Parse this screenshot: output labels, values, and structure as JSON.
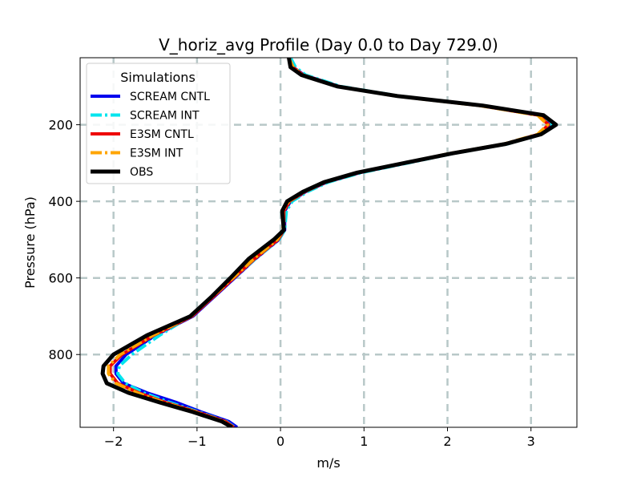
{
  "chart_data": {
    "type": "line",
    "title": "V_horiz_avg Profile (Day 0.0 to Day 729.0)",
    "xlabel": "m/s",
    "ylabel": "Pressure (hPa)",
    "xlim": [
      -2.4,
      3.55
    ],
    "ylim": [
      990,
      25
    ],
    "y_inverted": true,
    "grid": true,
    "x_ticks": [
      -2,
      -1,
      0,
      1,
      2,
      3
    ],
    "x_tick_labels": [
      "−2",
      "−1",
      "0",
      "1",
      "2",
      "3"
    ],
    "y_ticks": [
      200,
      400,
      600,
      800
    ],
    "y_tick_labels": [
      "200",
      "400",
      "600",
      "800"
    ],
    "legend": {
      "title": "Simulations",
      "position": "top-left"
    },
    "pressure": [
      25,
      50,
      70,
      100,
      125,
      150,
      175,
      200,
      225,
      250,
      275,
      300,
      325,
      350,
      375,
      400,
      425,
      450,
      475,
      500,
      550,
      600,
      650,
      700,
      750,
      800,
      830,
      850,
      875,
      900,
      925,
      950,
      975,
      990
    ],
    "series": [
      {
        "name": "SCREAM CNTL",
        "color": "#0000ee",
        "dash": "solid",
        "width": 4,
        "values": [
          0.1,
          0.15,
          0.28,
          0.7,
          1.4,
          2.4,
          3.1,
          3.22,
          3.1,
          2.7,
          2.05,
          1.5,
          0.95,
          0.55,
          0.3,
          0.12,
          0.05,
          0.05,
          0.05,
          -0.02,
          -0.3,
          -0.55,
          -0.8,
          -1.05,
          -1.5,
          -1.85,
          -1.97,
          -1.97,
          -1.88,
          -1.6,
          -1.25,
          -0.95,
          -0.62,
          -0.52
        ]
      },
      {
        "name": "SCREAM INT",
        "color": "#00e5ee",
        "dash": "dashdot",
        "width": 4,
        "values": [
          0.12,
          0.18,
          0.3,
          0.72,
          1.42,
          2.42,
          3.12,
          3.24,
          3.12,
          2.72,
          2.07,
          1.52,
          0.97,
          0.57,
          0.32,
          0.14,
          0.07,
          0.06,
          0.05,
          -0.02,
          -0.3,
          -0.56,
          -0.82,
          -1.08,
          -1.45,
          -1.78,
          -1.93,
          -1.95,
          -1.86,
          -1.64,
          -1.33,
          -0.98,
          -0.65,
          -0.55
        ]
      },
      {
        "name": "E3SM CNTL",
        "color": "#ee0000",
        "dash": "solid",
        "width": 4,
        "values": [
          0.1,
          0.15,
          0.27,
          0.69,
          1.39,
          2.39,
          3.09,
          3.21,
          3.09,
          2.69,
          2.04,
          1.49,
          0.94,
          0.54,
          0.29,
          0.11,
          0.04,
          0.04,
          0.04,
          -0.03,
          -0.31,
          -0.56,
          -0.81,
          -1.06,
          -1.52,
          -1.9,
          -2.04,
          -2.04,
          -1.95,
          -1.7,
          -1.38,
          -1.0,
          -0.66,
          -0.56
        ]
      },
      {
        "name": "E3SM INT",
        "color": "#ffa500",
        "dash": "dashdot",
        "width": 4,
        "values": [
          0.1,
          0.15,
          0.26,
          0.68,
          1.38,
          2.38,
          3.08,
          3.2,
          3.08,
          2.68,
          2.03,
          1.48,
          0.93,
          0.53,
          0.28,
          0.1,
          0.03,
          0.03,
          0.03,
          -0.04,
          -0.32,
          -0.57,
          -0.82,
          -1.07,
          -1.53,
          -1.92,
          -2.06,
          -2.06,
          -1.97,
          -1.72,
          -1.4,
          -1.02,
          -0.68,
          -0.58
        ]
      },
      {
        "name": "OBS",
        "color": "#000000",
        "dash": "solid",
        "width": 5,
        "values": [
          0.1,
          0.12,
          0.25,
          0.68,
          1.4,
          2.42,
          3.15,
          3.3,
          3.12,
          2.7,
          2.05,
          1.48,
          0.92,
          0.52,
          0.27,
          0.08,
          0.02,
          0.03,
          0.04,
          -0.08,
          -0.38,
          -0.6,
          -0.83,
          -1.08,
          -1.6,
          -2.0,
          -2.12,
          -2.13,
          -2.08,
          -1.82,
          -1.45,
          -1.05,
          -0.7,
          -0.58
        ]
      }
    ]
  }
}
